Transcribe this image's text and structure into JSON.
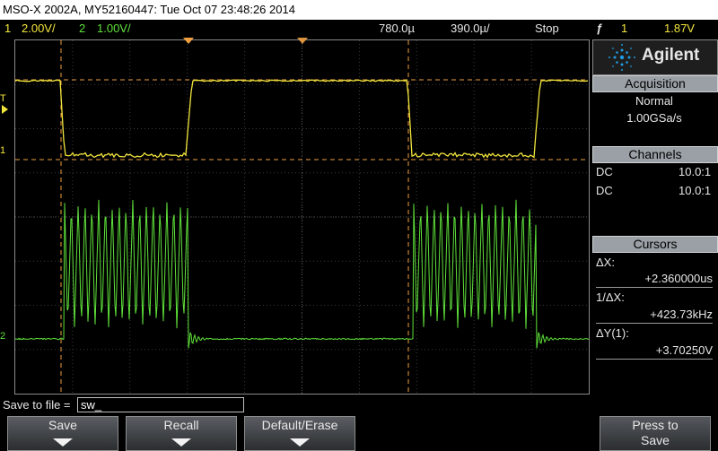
{
  "title_bar": {
    "text": "MSO-X 2002A, MY52160447: Tue Oct 07 23:48:26 2014"
  },
  "status_bar": {
    "ch1_num": "1",
    "ch1_scale": "2.00V/",
    "ch2_num": "2",
    "ch2_scale": "1.00V/",
    "time_delay": "780.0µ",
    "time_scale": "390.0µ/",
    "run_state": "Stop",
    "trigger_icon": "ƒ",
    "trigger_channel": "1",
    "trigger_level": "1.87V"
  },
  "screen": {
    "ch1_label": "1",
    "ch2_label": "2",
    "trigger_label": "T",
    "ch1_color": "#f2e63c",
    "ch2_color": "#5fe23a",
    "cursor_color": "#f0a040"
  },
  "side_panel": {
    "brand": "Agilent",
    "acquisition": {
      "title": "Acquisition",
      "mode": "Normal",
      "rate": "1.00GSa/s"
    },
    "channels": {
      "title": "Channels",
      "rows": [
        {
          "coupling": "DC",
          "probe": "10.0:1"
        },
        {
          "coupling": "DC",
          "probe": "10.0:1"
        }
      ]
    },
    "cursors": {
      "title": "Cursors",
      "dx_label": "ΔX:",
      "dx_value": "+2.360000us",
      "inv_dx_label": "1/ΔX:",
      "inv_dx_value": "+423.73kHz",
      "dy_label": "ΔY(1):",
      "dy_value": "+3.70250V"
    }
  },
  "bottom": {
    "save_label": "Save to file =",
    "file_value": "sw_",
    "softkeys": {
      "save": "Save",
      "recall": "Recall",
      "default_erase": "Default/Erase",
      "press_to": "Press to",
      "press_save": "Save"
    }
  }
}
